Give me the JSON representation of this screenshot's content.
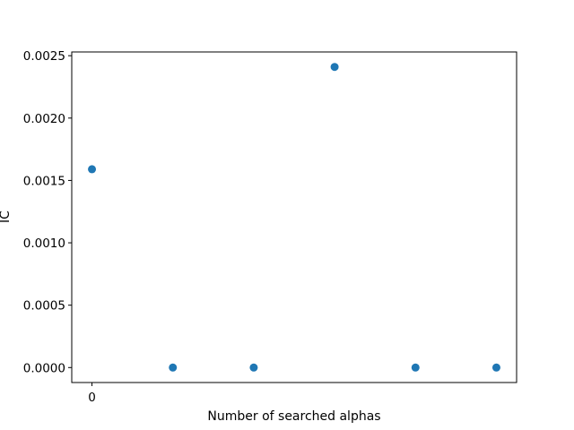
{
  "chart_data": {
    "type": "scatter",
    "title": "",
    "xlabel": "Number of searched alphas",
    "ylabel": "IC",
    "x": [
      0,
      1,
      2,
      3,
      4,
      5
    ],
    "y": [
      0.00159,
      0.0,
      0.0,
      0.00241,
      0.0,
      0.0
    ],
    "xlim": [
      -0.25,
      5.25
    ],
    "ylim": [
      -0.00012,
      0.00253
    ],
    "xticks": [
      0
    ],
    "xtick_labels": [
      "0"
    ],
    "yticks": [
      0.0,
      0.0005,
      0.001,
      0.0015,
      0.002,
      0.0025
    ],
    "ytick_labels": [
      "0.0000",
      "0.0005",
      "0.0010",
      "0.0015",
      "0.0020",
      "0.0025"
    ],
    "grid": false,
    "marker_color": "#1f77b4"
  }
}
